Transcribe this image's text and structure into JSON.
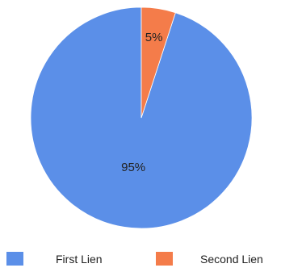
{
  "chart_data": {
    "type": "pie",
    "categories": [
      "First Lien",
      "Second Lien"
    ],
    "values": [
      95,
      5
    ],
    "value_labels": [
      "95%",
      "5%"
    ],
    "colors": [
      "#5b8fe8",
      "#f47c4a"
    ],
    "legend_position": "bottom"
  }
}
